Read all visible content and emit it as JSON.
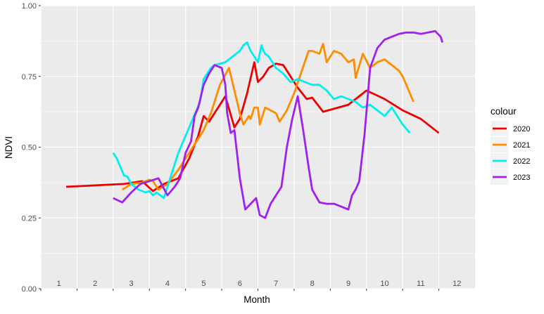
{
  "chart_data": {
    "type": "line",
    "xlabel": "Month",
    "ylabel": "NDVI",
    "xlim": [
      0.5,
      12.5
    ],
    "ylim": [
      0,
      1
    ],
    "y_ticks": [
      "0.00",
      "0.25",
      "0.50",
      "0.75",
      "1.00"
    ],
    "x_ticks": [
      "1",
      "2",
      "3",
      "4",
      "5",
      "6",
      "7",
      "8",
      "9",
      "10",
      "11",
      "12"
    ],
    "legend_title": "colour",
    "legend_position": "right",
    "grid": true,
    "series": [
      {
        "name": "2020",
        "color": "#EE0000",
        "x": [
          1.2,
          2.0,
          2.8,
          3.3,
          3.6,
          3.9,
          4.3,
          4.6,
          4.85,
          5.0,
          5.15,
          5.35,
          5.6,
          5.85,
          6.0,
          6.2,
          6.4,
          6.5,
          6.65,
          6.8,
          7.0,
          7.2,
          7.6,
          7.85,
          8.0,
          8.3,
          9.0,
          9.5,
          10.0,
          10.5,
          11.0,
          11.5
        ],
        "values": [
          0.36,
          0.365,
          0.37,
          0.38,
          0.345,
          0.37,
          0.39,
          0.46,
          0.54,
          0.61,
          0.59,
          0.63,
          0.68,
          0.57,
          0.6,
          0.69,
          0.8,
          0.73,
          0.75,
          0.78,
          0.795,
          0.79,
          0.71,
          0.67,
          0.675,
          0.625,
          0.65,
          0.7,
          0.67,
          0.63,
          0.6,
          0.55
        ]
      },
      {
        "name": "2021",
        "color": "#FF8C00",
        "x": [
          2.75,
          3.0,
          3.3,
          3.5,
          3.6,
          3.75,
          4.0,
          4.3,
          4.7,
          5.0,
          5.2,
          5.45,
          5.7,
          5.85,
          6.0,
          6.1,
          6.25,
          6.3,
          6.4,
          6.5,
          6.55,
          6.7,
          6.85,
          7.0,
          7.1,
          7.3,
          7.5,
          7.9,
          8.0,
          8.2,
          8.3,
          8.4,
          8.6,
          8.8,
          9.0,
          9.15,
          9.2,
          9.4,
          9.6,
          9.8,
          10.0,
          10.2,
          10.4,
          10.5,
          10.8
        ],
        "values": [
          0.35,
          0.37,
          0.375,
          0.385,
          0.38,
          0.35,
          0.37,
          0.42,
          0.5,
          0.56,
          0.62,
          0.72,
          0.78,
          0.7,
          0.62,
          0.58,
          0.61,
          0.6,
          0.64,
          0.64,
          0.58,
          0.64,
          0.63,
          0.62,
          0.59,
          0.63,
          0.69,
          0.84,
          0.84,
          0.83,
          0.865,
          0.8,
          0.84,
          0.83,
          0.8,
          0.81,
          0.745,
          0.83,
          0.78,
          0.8,
          0.81,
          0.79,
          0.77,
          0.75,
          0.66
        ]
      },
      {
        "name": "2022",
        "color": "#00EEEE",
        "x": [
          2.5,
          2.6,
          2.7,
          2.8,
          2.9,
          3.0,
          3.1,
          3.2,
          3.4,
          3.5,
          3.6,
          3.7,
          3.8,
          3.9,
          4.0,
          4.1,
          4.3,
          4.5,
          4.7,
          4.9,
          5.0,
          5.1,
          5.2,
          5.3,
          5.6,
          5.8,
          6.0,
          6.1,
          6.2,
          6.3,
          6.4,
          6.5,
          6.6,
          6.65,
          6.7,
          6.8,
          6.9,
          7.0,
          7.2,
          7.4,
          7.6,
          7.8,
          8.0,
          8.2,
          8.4,
          8.6,
          8.8,
          9.0,
          9.2,
          9.4,
          9.6,
          9.8,
          10.0,
          10.2,
          10.4,
          10.5,
          10.7
        ],
        "values": [
          0.48,
          0.46,
          0.43,
          0.4,
          0.395,
          0.37,
          0.36,
          0.35,
          0.34,
          0.345,
          0.33,
          0.34,
          0.33,
          0.32,
          0.36,
          0.4,
          0.48,
          0.54,
          0.6,
          0.66,
          0.74,
          0.76,
          0.78,
          0.79,
          0.8,
          0.82,
          0.84,
          0.86,
          0.87,
          0.84,
          0.82,
          0.8,
          0.86,
          0.84,
          0.83,
          0.82,
          0.8,
          0.78,
          0.76,
          0.73,
          0.74,
          0.73,
          0.72,
          0.72,
          0.7,
          0.67,
          0.68,
          0.67,
          0.66,
          0.64,
          0.65,
          0.63,
          0.61,
          0.64,
          0.6,
          0.58,
          0.55
        ]
      },
      {
        "name": "2023",
        "color": "#A020F0",
        "x": [
          2.5,
          2.75,
          3.0,
          3.25,
          3.5,
          3.75,
          4.0,
          4.2,
          4.35,
          4.5,
          4.65,
          4.75,
          4.85,
          5.0,
          5.15,
          5.3,
          5.5,
          5.6,
          5.65,
          5.75,
          5.85,
          6.0,
          6.15,
          6.3,
          6.45,
          6.55,
          6.7,
          6.85,
          7.0,
          7.15,
          7.3,
          7.45,
          7.6,
          7.75,
          7.9,
          8.0,
          8.2,
          8.4,
          8.6,
          8.8,
          9.0,
          9.1,
          9.2,
          9.3,
          9.45,
          9.6,
          9.8,
          10.0,
          10.2,
          10.4,
          10.6,
          10.8,
          11.0,
          11.2,
          11.4,
          11.55,
          11.6
        ],
        "values": [
          0.32,
          0.305,
          0.34,
          0.37,
          0.38,
          0.39,
          0.33,
          0.36,
          0.39,
          0.48,
          0.52,
          0.61,
          0.64,
          0.72,
          0.76,
          0.79,
          0.78,
          0.72,
          0.62,
          0.55,
          0.56,
          0.39,
          0.28,
          0.3,
          0.32,
          0.26,
          0.25,
          0.3,
          0.33,
          0.36,
          0.5,
          0.6,
          0.68,
          0.56,
          0.43,
          0.35,
          0.305,
          0.3,
          0.3,
          0.29,
          0.28,
          0.33,
          0.35,
          0.38,
          0.55,
          0.78,
          0.85,
          0.88,
          0.89,
          0.9,
          0.905,
          0.905,
          0.9,
          0.905,
          0.91,
          0.89,
          0.87
        ]
      }
    ]
  }
}
